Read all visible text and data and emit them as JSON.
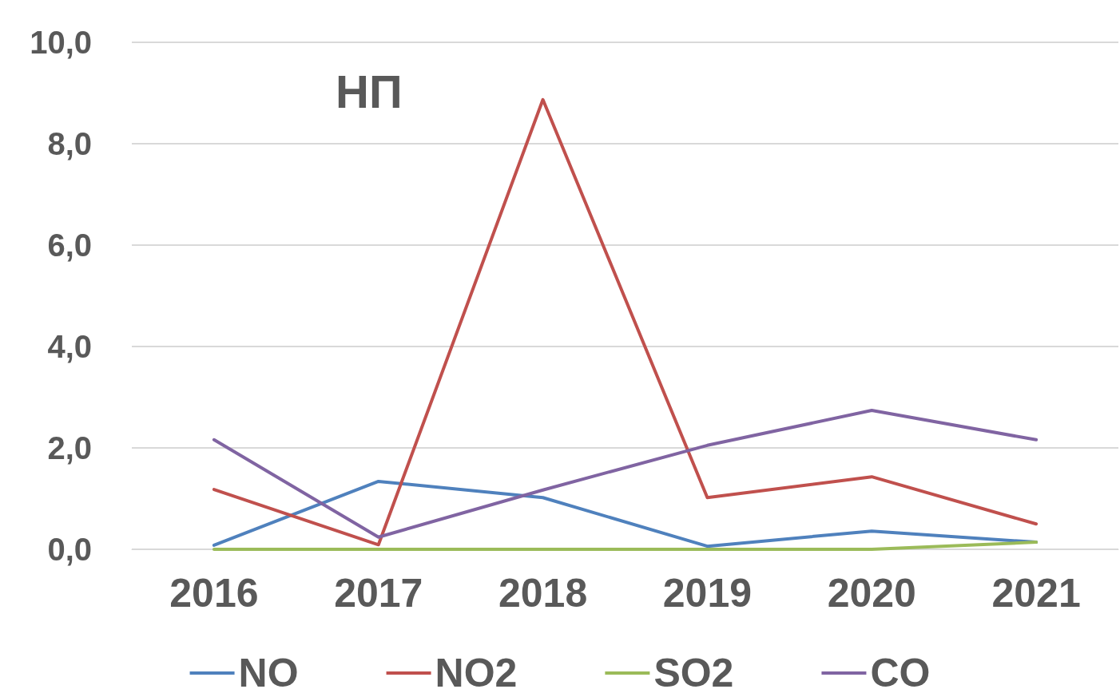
{
  "chart_data": {
    "type": "line",
    "title": "НП",
    "categories": [
      "2016",
      "2017",
      "2018",
      "2019",
      "2020",
      "2021"
    ],
    "series": [
      {
        "name": "NO",
        "color": "#4f81bd",
        "values": [
          0.08,
          1.34,
          1.02,
          0.06,
          0.36,
          0.14
        ]
      },
      {
        "name": "NO2",
        "color": "#c0504d",
        "values": [
          1.18,
          0.09,
          8.87,
          1.02,
          1.43,
          0.5
        ]
      },
      {
        "name": "SO2",
        "color": "#9bbb59",
        "values": [
          0,
          0,
          0,
          0,
          0,
          0.14
        ]
      },
      {
        "name": "CO",
        "color": "#8064a2",
        "values": [
          2.16,
          0.24,
          1.17,
          2.05,
          2.74,
          2.16
        ]
      }
    ],
    "ylim": [
      0,
      10
    ],
    "yticks": [
      {
        "value": 0,
        "label": "0,0"
      },
      {
        "value": 2,
        "label": "2,0"
      },
      {
        "value": 4,
        "label": "4,0"
      },
      {
        "value": 6,
        "label": "6,0"
      },
      {
        "value": 8,
        "label": "8,0"
      },
      {
        "value": 10,
        "label": "10,0"
      }
    ],
    "grid": "y",
    "legend": "bottom",
    "marker": "none",
    "line_style": "solid"
  }
}
